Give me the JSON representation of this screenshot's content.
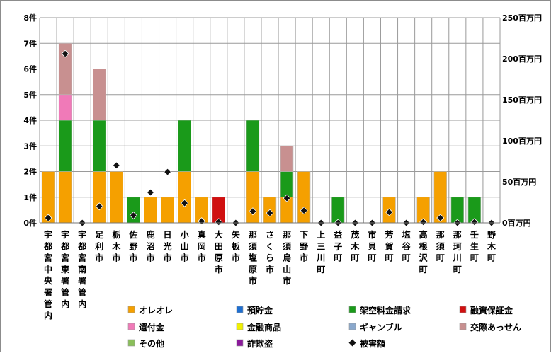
{
  "chart_data": {
    "type": "bar",
    "stacked": true,
    "title": "",
    "xlabel": "",
    "ylabel": "",
    "ylim": [
      0,
      8
    ],
    "y_ticks": [
      "0件",
      "1件",
      "2件",
      "3件",
      "4件",
      "5件",
      "6件",
      "7件",
      "8件"
    ],
    "y2lim": [
      0,
      250
    ],
    "y2_ticks": [
      "0百万円",
      "50百万円",
      "100百万円",
      "150百万円",
      "200百万円",
      "250百万円"
    ],
    "grid": true,
    "categories": [
      "宇都宮中央署管内",
      "宇都宮東署管内",
      "宇都宮南署管内",
      "足利市",
      "栃木市",
      "佐野市",
      "鹿沼市",
      "日光市",
      "小山市",
      "真岡市",
      "大田原市",
      "矢板市",
      "那須塩原市",
      "さくら市",
      "那須烏山市",
      "下野市",
      "上三川町",
      "益子町",
      "茂木町",
      "市貝町",
      "芳賀町",
      "塩谷町",
      "高根沢町",
      "那須町",
      "那珂川町",
      "壬生町",
      "野木町"
    ],
    "series": [
      {
        "name": "オレオレ",
        "color": "#f5a000",
        "values": [
          2,
          2,
          0,
          2,
          2,
          0,
          1,
          1,
          2,
          1,
          0,
          0,
          2,
          1,
          1,
          2,
          0,
          0,
          0,
          0,
          1,
          0,
          1,
          2,
          0,
          0,
          0
        ]
      },
      {
        "name": "預貯金",
        "color": "#1f6fd0",
        "values": [
          0,
          0,
          0,
          0,
          0,
          0,
          0,
          0,
          0,
          0,
          0,
          0,
          0,
          0,
          0,
          0,
          0,
          0,
          0,
          0,
          0,
          0,
          0,
          0,
          0,
          0,
          0
        ]
      },
      {
        "name": "架空料金請求",
        "color": "#1a9a1a",
        "values": [
          0,
          2,
          0,
          2,
          0,
          1,
          0,
          0,
          2,
          0,
          0,
          0,
          2,
          0,
          1,
          0,
          0,
          1,
          0,
          0,
          0,
          0,
          0,
          0,
          1,
          1,
          0
        ]
      },
      {
        "name": "融資保証金",
        "color": "#d01010",
        "values": [
          0,
          0,
          0,
          0,
          0,
          0,
          0,
          0,
          0,
          0,
          1,
          0,
          0,
          0,
          0,
          0,
          0,
          0,
          0,
          0,
          0,
          0,
          0,
          0,
          0,
          0,
          0
        ]
      },
      {
        "name": "還付金",
        "color": "#f07ab8",
        "values": [
          0,
          1,
          0,
          0,
          0,
          0,
          0,
          0,
          0,
          0,
          0,
          0,
          0,
          0,
          0,
          0,
          0,
          0,
          0,
          0,
          0,
          0,
          0,
          0,
          0,
          0,
          0
        ]
      },
      {
        "name": "金融商品",
        "color": "#f0f000",
        "values": [
          0,
          0,
          0,
          0,
          0,
          0,
          0,
          0,
          0,
          0,
          0,
          0,
          0,
          0,
          0,
          0,
          0,
          0,
          0,
          0,
          0,
          0,
          0,
          0,
          0,
          0,
          0
        ]
      },
      {
        "name": "ギャンブル",
        "color": "#8aa8cc",
        "values": [
          0,
          0,
          0,
          0,
          0,
          0,
          0,
          0,
          0,
          0,
          0,
          0,
          0,
          0,
          0,
          0,
          0,
          0,
          0,
          0,
          0,
          0,
          0,
          0,
          0,
          0,
          0
        ]
      },
      {
        "name": "交際あっせん",
        "color": "#c89090",
        "values": [
          0,
          2,
          0,
          2,
          0,
          0,
          0,
          0,
          0,
          0,
          0,
          0,
          0,
          0,
          1,
          0,
          0,
          0,
          0,
          0,
          0,
          0,
          0,
          0,
          0,
          0,
          0
        ]
      },
      {
        "name": "その他",
        "color": "#8abf5a",
        "values": [
          0,
          0,
          0,
          0,
          0,
          0,
          0,
          0,
          0,
          0,
          0,
          0,
          0,
          0,
          0,
          0,
          0,
          0,
          0,
          0,
          0,
          0,
          0,
          0,
          0,
          0,
          0
        ]
      },
      {
        "name": "詐欺盗",
        "color": "#8a1a9a",
        "values": [
          0,
          0,
          0,
          0,
          0,
          0,
          0,
          0,
          0,
          0,
          0,
          0,
          0,
          0,
          0,
          0,
          0,
          0,
          0,
          0,
          0,
          0,
          0,
          0,
          0,
          0,
          0
        ]
      }
    ],
    "line_series": {
      "name": "被害額",
      "axis": "secondary",
      "unit": "百万円",
      "values": [
        6,
        206,
        0,
        20,
        70,
        9,
        37,
        62,
        24,
        2,
        1,
        0,
        14,
        12,
        30,
        15,
        0,
        0,
        0,
        0,
        13,
        0,
        1,
        6,
        0,
        1,
        0
      ]
    },
    "legend_position": "bottom"
  }
}
